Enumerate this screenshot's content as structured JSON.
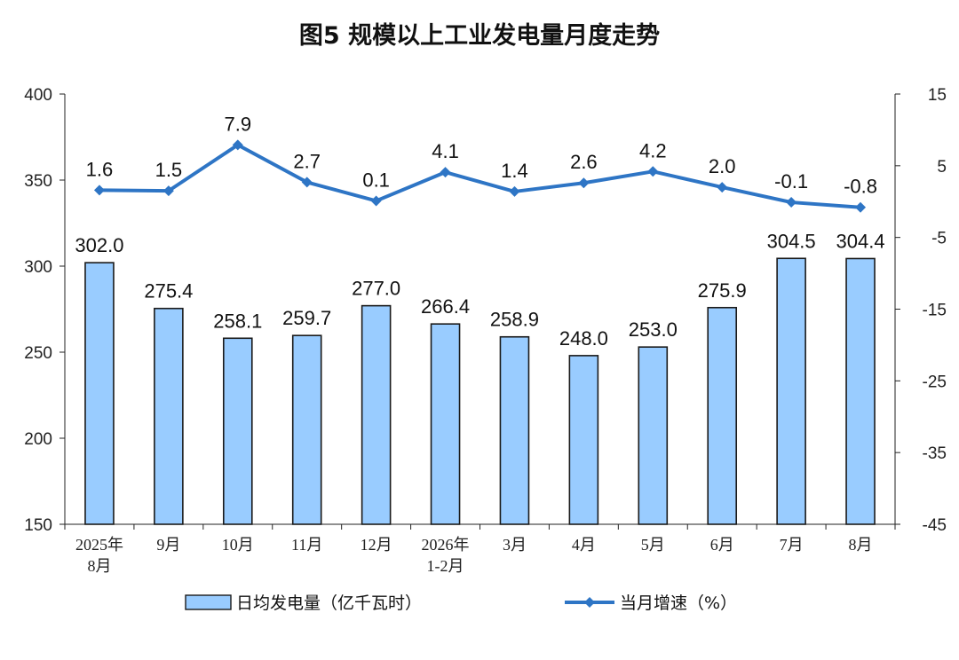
{
  "chart_data": {
    "type": "bar",
    "title": "图5  规模以上工业发电量月度走势",
    "categories": [
      "2025年\n8月",
      "9月",
      "10月",
      "11月",
      "12月",
      "2026年\n1-2月",
      "3月",
      "4月",
      "5月",
      "6月",
      "7月",
      "8月"
    ],
    "series": [
      {
        "name": "日均发电量（亿千瓦时）",
        "type": "bar",
        "axis": "left",
        "values": [
          302.0,
          275.4,
          258.1,
          259.7,
          277.0,
          266.4,
          258.9,
          248.0,
          253.0,
          275.9,
          304.5,
          304.4
        ],
        "labels": [
          "302.0",
          "275.4",
          "258.1",
          "259.7",
          "277.0",
          "266.4",
          "258.9",
          "248.0",
          "253.0",
          "275.9",
          "304.5",
          "304.4"
        ]
      },
      {
        "name": "当月增速（%）",
        "type": "line",
        "axis": "right",
        "values": [
          1.6,
          1.5,
          7.9,
          2.7,
          0.1,
          4.1,
          1.4,
          2.6,
          4.2,
          2.0,
          -0.1,
          -0.8
        ],
        "labels": [
          "1.6",
          "1.5",
          "7.9",
          "2.7",
          "0.1",
          "4.1",
          "1.4",
          "2.6",
          "4.2",
          "2.0",
          "-0.1",
          "-0.8"
        ]
      }
    ],
    "y_left": {
      "ylim": [
        150,
        400
      ],
      "ticks": [
        "150",
        "200",
        "250",
        "300",
        "350",
        "400"
      ]
    },
    "y_right": {
      "ylim": [
        -45,
        15
      ],
      "ticks": [
        "-45",
        "-35",
        "-25",
        "-15",
        "-5",
        "5",
        "15"
      ]
    },
    "grid": false,
    "legend": "bottom",
    "colors": {
      "bar_fill": "#99CCFF",
      "bar_stroke": "#1a1a1a",
      "line": "#2E75C5"
    }
  }
}
